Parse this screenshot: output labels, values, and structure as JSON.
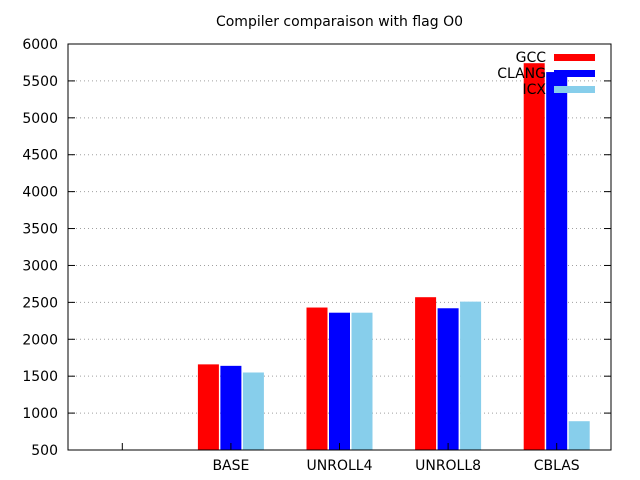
{
  "chart_data": {
    "type": "bar",
    "title": "Compiler comparaison with flag O0",
    "xlabel": "",
    "ylabel": "",
    "categories": [
      "",
      "BASE",
      "UNROLL4",
      "UNROLL8",
      "CBLAS"
    ],
    "ylim": [
      500,
      6000
    ],
    "yticks": [
      500,
      1000,
      1500,
      2000,
      2500,
      3000,
      3500,
      4000,
      4500,
      5000,
      5500,
      6000
    ],
    "grid": "horizontal dotted",
    "legend_position": "top-right",
    "series": [
      {
        "name": "GCC",
        "color": "#ff0000",
        "values": [
          null,
          1660,
          2430,
          2570,
          5740
        ]
      },
      {
        "name": "CLANG",
        "color": "#0000ff",
        "values": [
          null,
          1640,
          2360,
          2420,
          5620
        ]
      },
      {
        "name": "ICX",
        "color": "#87ceeb",
        "values": [
          null,
          1550,
          2360,
          2510,
          890
        ]
      }
    ]
  }
}
